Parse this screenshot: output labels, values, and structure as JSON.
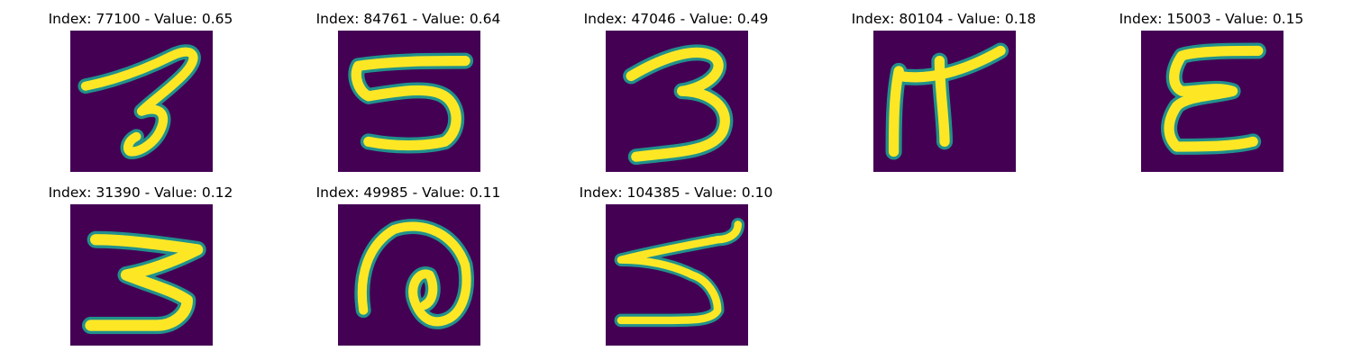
{
  "figure": {
    "background": "#ffffff",
    "colormap": {
      "low": "#440154",
      "mid": "#21918c",
      "high": "#fde725"
    },
    "panels": [
      {
        "title": "Index: 77100 - Value: 0.65",
        "glyph": "digit-3-tilted"
      },
      {
        "title": "Index: 84761 - Value: 0.64",
        "glyph": "digit-5"
      },
      {
        "title": "Index: 47046 - Value: 0.49",
        "glyph": "digit-3"
      },
      {
        "title": "Index: 80104 - Value: 0.18",
        "glyph": "symbol-pi"
      },
      {
        "title": "Index: 15003 - Value: 0.15",
        "glyph": "letter-E"
      },
      {
        "title": "Index: 31390 - Value: 0.12",
        "glyph": "digit-3-angular"
      },
      {
        "title": "Index: 49985 - Value: 0.11",
        "glyph": "spiral"
      },
      {
        "title": "Index: 104385 - Value: 0.10",
        "glyph": "digit-5-loose"
      }
    ]
  }
}
